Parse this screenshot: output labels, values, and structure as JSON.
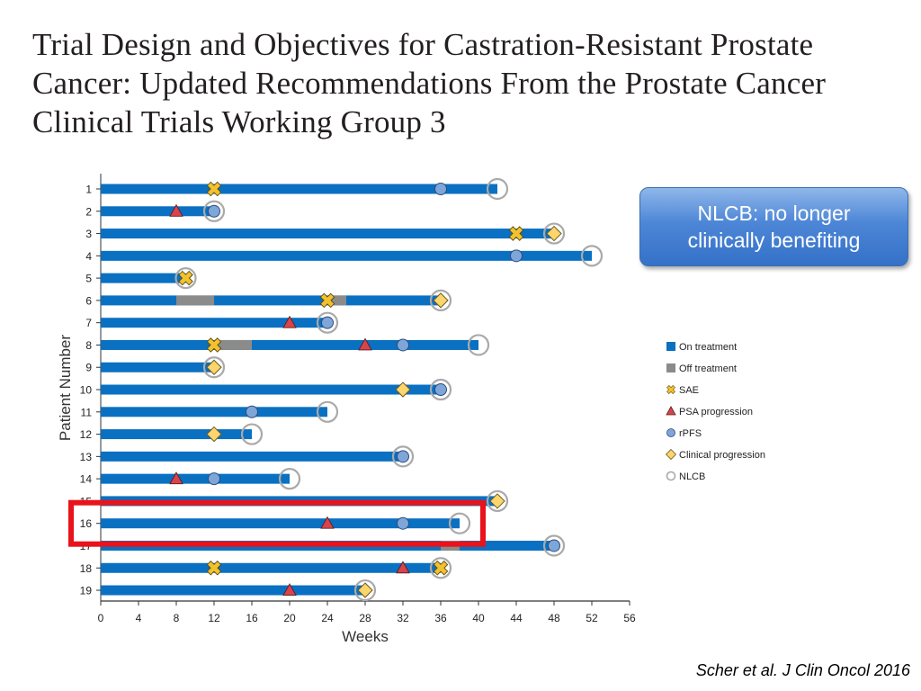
{
  "slide": {
    "title": "Trial Design and Objectives for Castration-Resistant Prostate Cancer: Updated Recommendations From the Prostate Cancer Clinical Trials Working Group 3",
    "callout": "NLCB: no longer clinically benefiting",
    "citation": "Scher et al. J Clin Oncol 2016",
    "highlight_color": "#e8131b",
    "highlighted_patient": 16
  },
  "chart_data": {
    "type": "swimmer",
    "xlabel": "Weeks",
    "ylabel": "Patient Number",
    "xlim": [
      0,
      56
    ],
    "xticks": [
      0,
      4,
      8,
      12,
      16,
      20,
      24,
      28,
      32,
      36,
      40,
      44,
      48,
      52,
      56
    ],
    "colors": {
      "on_treatment": "#0a70c2",
      "off_treatment": "#8b8b8b",
      "sae": "#f2c12e",
      "psa": "#d9444b",
      "rpfs": "#7fa6d9",
      "clinical": "#fcd56c",
      "nlcb": "#ffffff"
    },
    "legend": [
      {
        "key": "on_treatment",
        "label": "On treatment"
      },
      {
        "key": "off_treatment",
        "label": "Off treatment"
      },
      {
        "key": "sae",
        "label": "SAE"
      },
      {
        "key": "psa",
        "label": "PSA progression"
      },
      {
        "key": "rpfs",
        "label": "rPFS"
      },
      {
        "key": "clinical",
        "label": "Clinical progression"
      },
      {
        "key": "nlcb",
        "label": "NLCB"
      }
    ],
    "patients": [
      {
        "id": 1,
        "end": 42,
        "off": [],
        "sae": [
          12
        ],
        "psa": [],
        "rpfs": [
          36
        ],
        "clinical": [],
        "nlcb": 42
      },
      {
        "id": 2,
        "end": 12,
        "off": [],
        "sae": [],
        "psa": [
          8
        ],
        "rpfs": [
          12
        ],
        "clinical": [],
        "nlcb": 12
      },
      {
        "id": 3,
        "end": 48,
        "off": [],
        "sae": [
          44
        ],
        "psa": [],
        "rpfs": [],
        "clinical": [
          48
        ],
        "nlcb": 48
      },
      {
        "id": 4,
        "end": 52,
        "off": [],
        "sae": [],
        "psa": [],
        "rpfs": [
          44
        ],
        "clinical": [],
        "nlcb": 52
      },
      {
        "id": 5,
        "end": 9,
        "off": [],
        "sae": [
          9
        ],
        "psa": [],
        "rpfs": [],
        "clinical": [],
        "nlcb": 9
      },
      {
        "id": 6,
        "end": 36,
        "off": [
          [
            8,
            12
          ],
          [
            24,
            26
          ]
        ],
        "sae": [
          24
        ],
        "psa": [],
        "rpfs": [],
        "clinical": [
          36
        ],
        "nlcb": 36
      },
      {
        "id": 7,
        "end": 24,
        "off": [],
        "sae": [],
        "psa": [
          20
        ],
        "rpfs": [
          24
        ],
        "clinical": [],
        "nlcb": 24
      },
      {
        "id": 8,
        "end": 40,
        "off": [
          [
            12,
            16
          ]
        ],
        "sae": [
          12
        ],
        "psa": [
          28
        ],
        "rpfs": [
          32
        ],
        "clinical": [],
        "nlcb": 40
      },
      {
        "id": 9,
        "end": 12,
        "off": [],
        "sae": [],
        "psa": [],
        "rpfs": [],
        "clinical": [
          12
        ],
        "nlcb": 12
      },
      {
        "id": 10,
        "end": 36,
        "off": [],
        "sae": [],
        "psa": [],
        "rpfs": [
          36
        ],
        "clinical": [
          32
        ],
        "nlcb": 36
      },
      {
        "id": 11,
        "end": 24,
        "off": [],
        "sae": [],
        "psa": [],
        "rpfs": [
          16
        ],
        "clinical": [],
        "nlcb": 24
      },
      {
        "id": 12,
        "end": 16,
        "off": [],
        "sae": [],
        "psa": [],
        "rpfs": [],
        "clinical": [
          12
        ],
        "nlcb": 16
      },
      {
        "id": 13,
        "end": 32,
        "off": [],
        "sae": [],
        "psa": [],
        "rpfs": [
          32
        ],
        "clinical": [],
        "nlcb": 32
      },
      {
        "id": 14,
        "end": 20,
        "off": [],
        "sae": [],
        "psa": [
          8
        ],
        "rpfs": [
          12
        ],
        "clinical": [],
        "nlcb": 20
      },
      {
        "id": 15,
        "end": 42,
        "off": [],
        "sae": [],
        "psa": [],
        "rpfs": [],
        "clinical": [
          42
        ],
        "nlcb": 42
      },
      {
        "id": 16,
        "end": 38,
        "off": [],
        "sae": [],
        "psa": [
          24
        ],
        "rpfs": [
          32
        ],
        "clinical": [],
        "nlcb": 38
      },
      {
        "id": 17,
        "end": 48,
        "off": [
          [
            36,
            38
          ]
        ],
        "sae": [],
        "psa": [],
        "rpfs": [
          48
        ],
        "clinical": [],
        "nlcb": 48
      },
      {
        "id": 18,
        "end": 36,
        "off": [],
        "sae": [
          12,
          36
        ],
        "psa": [
          32
        ],
        "rpfs": [],
        "clinical": [],
        "nlcb": 36
      },
      {
        "id": 19,
        "end": 28,
        "off": [],
        "sae": [],
        "psa": [
          20
        ],
        "rpfs": [],
        "clinical": [
          28
        ],
        "nlcb": 28
      }
    ]
  }
}
